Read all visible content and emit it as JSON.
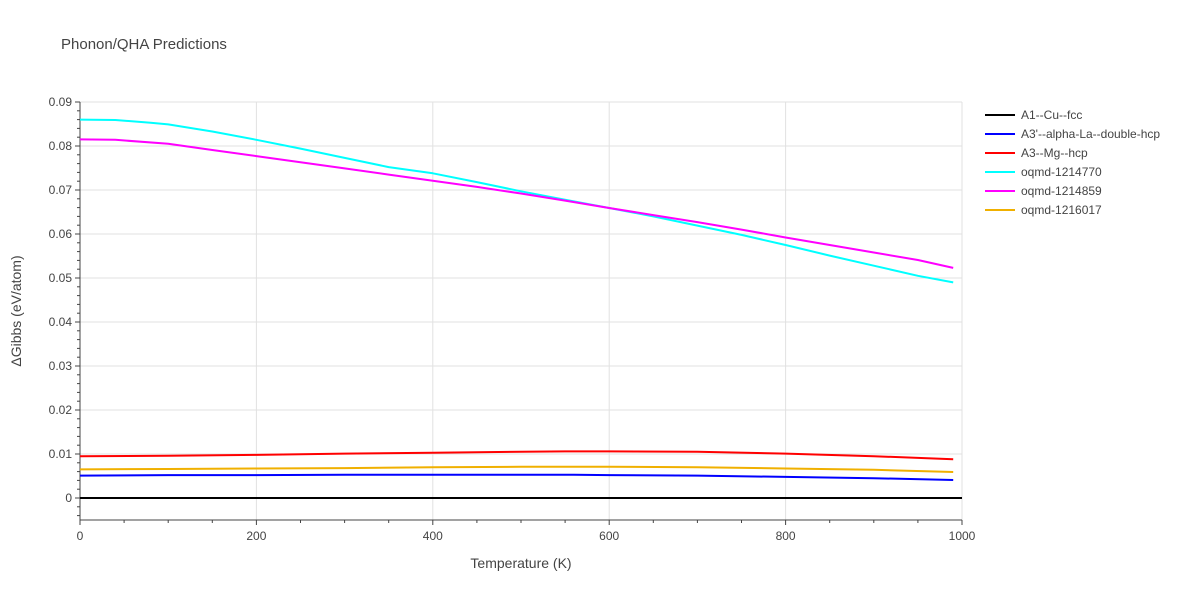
{
  "chart_title": "Phonon/QHA Predictions",
  "chart_data": {
    "type": "line",
    "title": "Phonon/QHA Predictions",
    "xlabel": "Temperature (K)",
    "ylabel": "ΔGibbs (eV/atom)",
    "xlim": [
      0,
      1000
    ],
    "ylim": [
      -0.005,
      0.09
    ],
    "xticks": [
      0,
      200,
      400,
      600,
      800,
      1000
    ],
    "yticks": [
      0,
      0.01,
      0.02,
      0.03,
      0.04,
      0.05,
      0.06,
      0.07,
      0.08,
      0.09
    ],
    "ytick_labels": [
      "0",
      "0.01",
      "0.02",
      "0.03",
      "0.04",
      "0.05",
      "0.06",
      "0.07",
      "0.08",
      "0.09"
    ],
    "grid": true,
    "legend_position": "right",
    "series": [
      {
        "name": "A1--Cu--fcc",
        "color": "#000000",
        "x": [
          0,
          1000
        ],
        "y": [
          0,
          0
        ]
      },
      {
        "name": "A3'--alpha-La--double-hcp",
        "color": "#0000ff",
        "x": [
          0,
          100,
          200,
          300,
          400,
          500,
          560,
          600,
          700,
          800,
          900,
          990
        ],
        "y": [
          0.0051,
          0.0052,
          0.0052,
          0.0053,
          0.0053,
          0.0053,
          0.0053,
          0.0052,
          0.0051,
          0.0048,
          0.0045,
          0.0041
        ]
      },
      {
        "name": "A3--Mg--hcp",
        "color": "#ff0000",
        "x": [
          0,
          100,
          200,
          300,
          400,
          500,
          550,
          600,
          700,
          800,
          900,
          990
        ],
        "y": [
          0.0095,
          0.0096,
          0.0098,
          0.0101,
          0.0103,
          0.0105,
          0.0106,
          0.0106,
          0.0105,
          0.0101,
          0.0095,
          0.0088
        ]
      },
      {
        "name": "oqmd-1214770",
        "color": "#00ffff",
        "x": [
          0,
          40,
          80,
          100,
          150,
          200,
          250,
          300,
          350,
          400,
          450,
          500,
          550,
          600,
          650,
          700,
          750,
          800,
          850,
          900,
          950,
          990
        ],
        "y": [
          0.086,
          0.0859,
          0.0853,
          0.0849,
          0.0833,
          0.0814,
          0.0794,
          0.0773,
          0.0752,
          0.0738,
          0.0718,
          0.0697,
          0.0678,
          0.0659,
          0.064,
          0.0619,
          0.0598,
          0.0575,
          0.0551,
          0.0528,
          0.0505,
          0.049
        ]
      },
      {
        "name": "oqmd-1214859",
        "color": "#ff00ff",
        "x": [
          0,
          40,
          100,
          150,
          200,
          250,
          300,
          350,
          400,
          450,
          500,
          550,
          600,
          650,
          700,
          750,
          800,
          850,
          900,
          950,
          990
        ],
        "y": [
          0.0815,
          0.0814,
          0.0805,
          0.0791,
          0.0777,
          0.0763,
          0.0749,
          0.0735,
          0.0721,
          0.0707,
          0.0692,
          0.0676,
          0.0659,
          0.0643,
          0.0627,
          0.061,
          0.0592,
          0.0575,
          0.0558,
          0.0541,
          0.0523
        ]
      },
      {
        "name": "oqmd-1216017",
        "color": "#f0b000",
        "x": [
          0,
          100,
          200,
          300,
          400,
          500,
          550,
          600,
          700,
          800,
          900,
          990
        ],
        "y": [
          0.0065,
          0.0066,
          0.0067,
          0.0068,
          0.007,
          0.0071,
          0.0071,
          0.0071,
          0.007,
          0.0067,
          0.0064,
          0.0059
        ]
      }
    ]
  }
}
